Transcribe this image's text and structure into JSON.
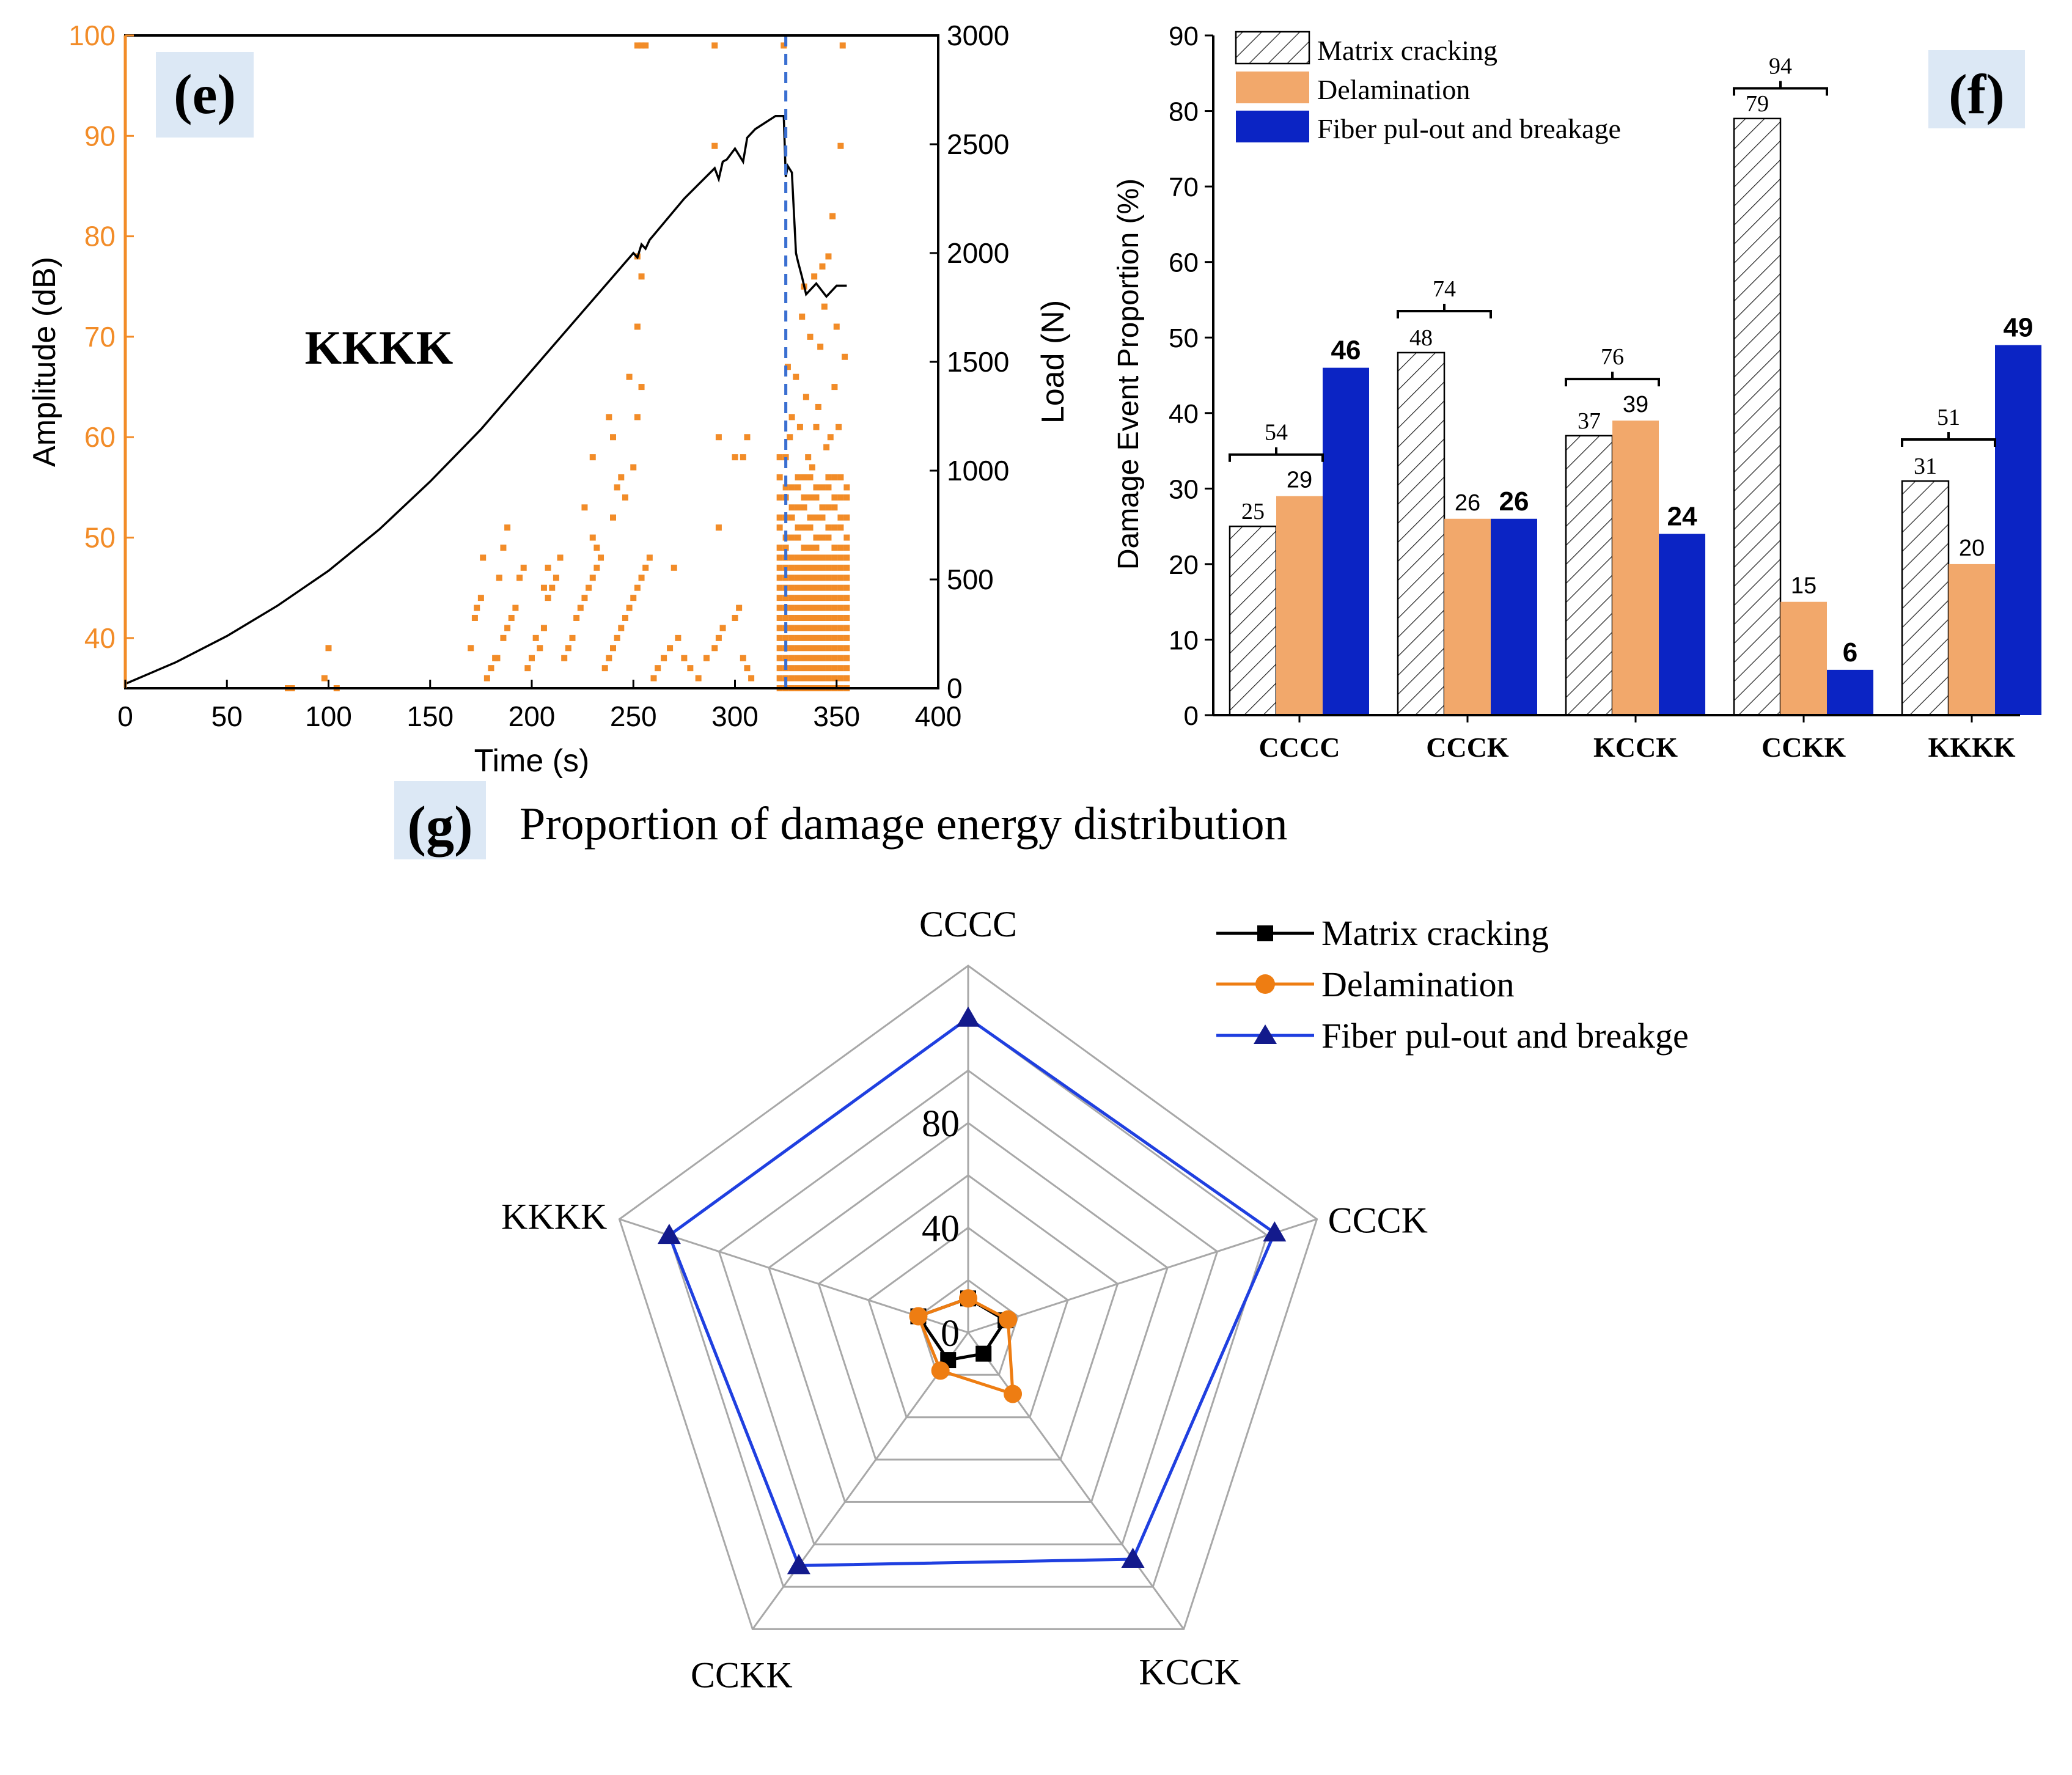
{
  "colors": {
    "orange": "#f28c28",
    "orange_axis": "#f28c28",
    "delam_bar": "#f2a86b",
    "fiber_bar": "#0b24c4",
    "load_line": "#000000",
    "dash_line": "#3a6fd1",
    "label_bg": "#dce8f5",
    "radar_matrix": "#000000",
    "radar_delam": "#ee7d12",
    "radar_fiber": "#1f3fe0",
    "radar_marker_fiber": "#131a8c",
    "grid": "#a8a8a8"
  },
  "chart_data": [
    {
      "id": "e",
      "type": "scatter",
      "panel_label": "(e)",
      "annotation": "KKKK",
      "xlabel": "Time (s)",
      "ylabel": "Amplitude (dB)",
      "y2label": "Load (N)",
      "xlim": [
        0,
        400
      ],
      "ylim": [
        35,
        100
      ],
      "y2lim": [
        0,
        3000
      ],
      "xticks": [
        "0",
        "50",
        "100",
        "150",
        "200",
        "250",
        "300",
        "350",
        "400"
      ],
      "yticks": [
        "40",
        "50",
        "60",
        "70",
        "80",
        "90",
        "100"
      ],
      "y2ticks": [
        "0",
        "500",
        "1000",
        "1500",
        "2000",
        "2500",
        "3000"
      ],
      "failure_time": 325,
      "load_curve": {
        "name": "Load",
        "x": [
          0,
          25,
          50,
          75,
          100,
          125,
          150,
          175,
          200,
          225,
          250,
          252,
          254,
          256,
          258,
          275,
          290,
          292,
          294,
          296,
          300,
          304,
          306,
          310,
          320,
          324,
          325,
          326,
          328,
          330,
          331,
          333,
          335,
          340,
          345,
          350,
          355
        ],
        "y": [
          20,
          120,
          240,
          380,
          540,
          730,
          950,
          1190,
          1460,
          1730,
          2000,
          1980,
          2040,
          2020,
          2060,
          2250,
          2390,
          2340,
          2420,
          2430,
          2480,
          2420,
          2530,
          2570,
          2630,
          2630,
          2350,
          2400,
          2370,
          2000,
          1960,
          1890,
          1810,
          1860,
          1800,
          1850,
          1850
        ]
      },
      "amplitude_series": {
        "name": "Amplitude",
        "x": [
          80,
          82,
          98,
          100,
          104,
          170,
          172,
          173,
          175,
          176,
          178,
          180,
          182,
          183,
          186,
          188,
          190,
          192,
          194,
          196,
          198,
          200,
          202,
          204,
          206,
          208,
          210,
          212,
          214,
          216,
          218,
          220,
          222,
          224,
          226,
          228,
          230,
          232,
          234,
          236,
          238,
          240,
          242,
          244,
          246,
          248,
          250,
          252,
          254,
          256,
          258,
          260,
          262,
          265,
          268,
          272,
          275,
          278,
          282,
          286,
          290,
          292,
          294,
          300,
          302,
          304,
          306,
          308,
          240,
          242,
          244,
          246,
          250,
          252,
          254,
          248,
          230,
          226,
          252,
          254,
          252,
          240,
          238,
          300,
          292,
          252,
          254,
          256,
          290,
          270,
          292,
          304,
          306,
          230,
          232,
          208,
          206,
          188,
          186,
          184,
          290
        ],
        "y": [
          35,
          35,
          36,
          39,
          35,
          39,
          42,
          43,
          44,
          48,
          36,
          37,
          38,
          38,
          40,
          41,
          42,
          43,
          46,
          47,
          37,
          38,
          40,
          39,
          41,
          44,
          45,
          46,
          48,
          38,
          39,
          40,
          42,
          43,
          44,
          45,
          46,
          47,
          48,
          37,
          38,
          39,
          40,
          41,
          42,
          43,
          44,
          45,
          46,
          47,
          48,
          36,
          37,
          38,
          39,
          40,
          38,
          37,
          36,
          38,
          39,
          40,
          41,
          42,
          43,
          38,
          37,
          36,
          52,
          55,
          56,
          54,
          57,
          62,
          65,
          66,
          58,
          53,
          71,
          76,
          78,
          60,
          62,
          58,
          60,
          99,
          99,
          99,
          89,
          47,
          51,
          58,
          60,
          50,
          49,
          47,
          45,
          51,
          49,
          46,
          99
        ]
      },
      "dense_region": {
        "x_range": [
          322,
          355
        ],
        "amplitude_range": [
          35,
          56
        ],
        "sparse_upper": [
          [
            325,
            58
          ],
          [
            328,
            62
          ],
          [
            330,
            66
          ],
          [
            333,
            72
          ],
          [
            335,
            64
          ],
          [
            337,
            70
          ],
          [
            339,
            76
          ],
          [
            342,
            69
          ],
          [
            344,
            73
          ],
          [
            346,
            78
          ],
          [
            348,
            82
          ],
          [
            350,
            71
          ],
          [
            352,
            89
          ],
          [
            353,
            99
          ],
          [
            327,
            60
          ],
          [
            332,
            61
          ],
          [
            336,
            58
          ],
          [
            341,
            63
          ],
          [
            345,
            59
          ],
          [
            349,
            65
          ],
          [
            351,
            61
          ],
          [
            324,
            99
          ],
          [
            334,
            75
          ],
          [
            343,
            77
          ],
          [
            347,
            60
          ],
          [
            354,
            68
          ],
          [
            338,
            57
          ],
          [
            340,
            61
          ],
          [
            322,
            58
          ],
          [
            326,
            67
          ]
        ]
      }
    },
    {
      "id": "f",
      "type": "bar",
      "panel_label": "(f)",
      "ylabel": "Damage Event Proportion (%)",
      "ylim": [
        0,
        90
      ],
      "yticks": [
        "0",
        "10",
        "20",
        "30",
        "40",
        "50",
        "60",
        "70",
        "80",
        "90"
      ],
      "categories": [
        "CCCC",
        "CCCK",
        "KCCK",
        "CCKK",
        "KKKK"
      ],
      "series": [
        {
          "name": "Matrix cracking",
          "values": [
            25,
            48,
            37,
            79,
            31
          ],
          "labels": [
            "25",
            "48",
            "37",
            "79",
            "31"
          ]
        },
        {
          "name": "Delamination",
          "values": [
            29,
            26,
            39,
            15,
            20
          ],
          "labels": [
            "29",
            "26",
            "39",
            "15",
            "20"
          ]
        },
        {
          "name": "Fiber pul-out and breakage",
          "values": [
            46,
            26,
            24,
            6,
            49
          ],
          "labels": [
            "46",
            "26",
            "24",
            "6",
            "49"
          ]
        }
      ],
      "brackets": {
        "values": [
          54,
          74,
          76,
          94,
          51
        ],
        "labels": [
          "54",
          "74",
          "76",
          "94",
          "51"
        ],
        "level": [
          34.5,
          53.5,
          44.5,
          83,
          36.5
        ]
      },
      "legend": [
        "Matrix cracking",
        "Delamination",
        "Fiber pul-out and breakage"
      ]
    },
    {
      "id": "g",
      "type": "radar",
      "panel_label": "(g)",
      "title": "Proportion of damage energy distribution",
      "axes": [
        "CCCC",
        "CCCK",
        "KCCK",
        "CCKK",
        "KKKK"
      ],
      "rlim": [
        0,
        140
      ],
      "rticks": [
        "0",
        "40",
        "80"
      ],
      "rtick_values": [
        0,
        40,
        80
      ],
      "rings": [
        20,
        40,
        60,
        80,
        100,
        120,
        140
      ],
      "series": [
        {
          "name": "Matrix cracking",
          "values": [
            13,
            15,
            10,
            13,
            20
          ]
        },
        {
          "name": "Delamination",
          "values": [
            13,
            16,
            29,
            18,
            20
          ]
        },
        {
          "name": "Fiber pul-out and breakge",
          "values": [
            120,
            123,
            107,
            110,
            120
          ]
        }
      ],
      "legend": [
        "Matrix cracking",
        "Delamination",
        "Fiber pul-out and breakge"
      ]
    }
  ]
}
